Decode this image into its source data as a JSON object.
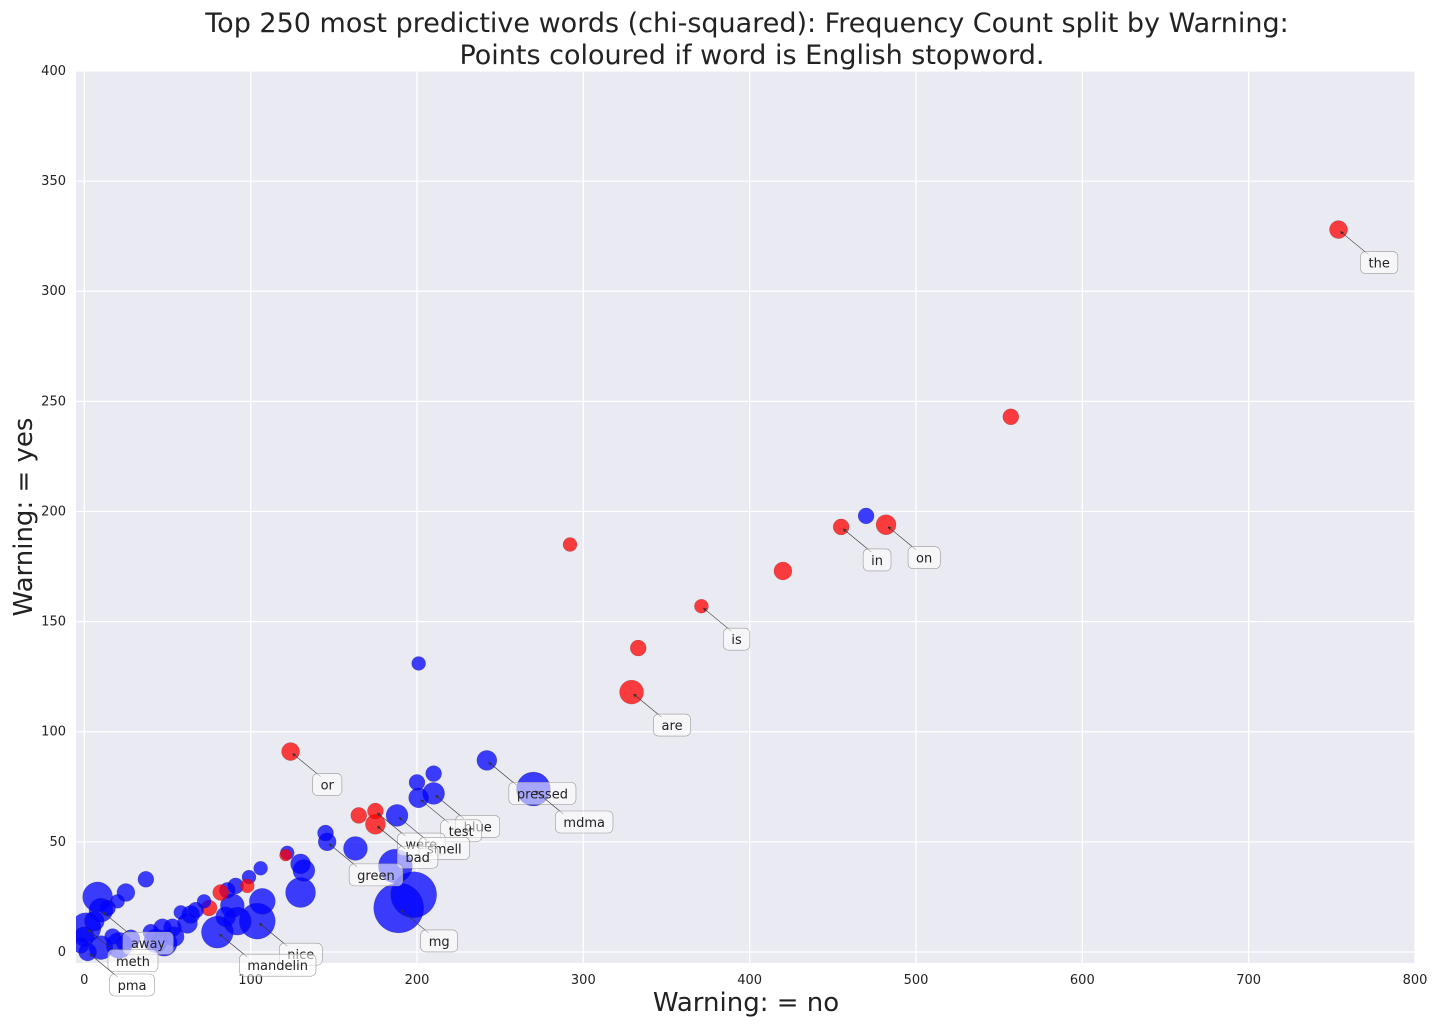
{
  "chart_data": {
    "type": "scatter",
    "title": "Top 250 most predictive words (chi-squared): Frequency Count split by Warning:",
    "subtitle": "Points coloured if word is English stopword.",
    "xlabel": "Warning: = no",
    "ylabel": "Warning: = yes",
    "xlim": [
      -5,
      800
    ],
    "ylim": [
      -5,
      400
    ],
    "xticks": [
      "0",
      "100",
      "200",
      "300",
      "400",
      "500",
      "600",
      "700",
      "800"
    ],
    "yticks": [
      "0",
      "50",
      "100",
      "150",
      "200",
      "250",
      "300",
      "350",
      "400"
    ],
    "grid": true,
    "colors": {
      "stopword": "#ff0000",
      "other": "#0000ff",
      "background": "#eaeaf2",
      "grid": "#ffffff"
    },
    "points": [
      {
        "x": 754,
        "y": 328,
        "size": 9,
        "stop": true
      },
      {
        "x": 557,
        "y": 243,
        "size": 8,
        "stop": true
      },
      {
        "x": 470,
        "y": 198,
        "size": 8,
        "stop": false
      },
      {
        "x": 455,
        "y": 193,
        "size": 8,
        "stop": true
      },
      {
        "x": 482,
        "y": 194,
        "size": 10,
        "stop": true
      },
      {
        "x": 292,
        "y": 185,
        "size": 7,
        "stop": true
      },
      {
        "x": 420,
        "y": 173,
        "size": 9,
        "stop": true
      },
      {
        "x": 371,
        "y": 157,
        "size": 7,
        "stop": true
      },
      {
        "x": 333,
        "y": 138,
        "size": 8,
        "stop": true
      },
      {
        "x": 201,
        "y": 131,
        "size": 7,
        "stop": false
      },
      {
        "x": 329,
        "y": 118,
        "size": 12,
        "stop": true
      },
      {
        "x": 124,
        "y": 91,
        "size": 9,
        "stop": true
      },
      {
        "x": 242,
        "y": 87,
        "size": 10,
        "stop": false
      },
      {
        "x": 270,
        "y": 74,
        "size": 17,
        "stop": false
      },
      {
        "x": 210,
        "y": 81,
        "size": 8,
        "stop": false
      },
      {
        "x": 200,
        "y": 77,
        "size": 8,
        "stop": false
      },
      {
        "x": 210,
        "y": 72,
        "size": 11,
        "stop": false
      },
      {
        "x": 201,
        "y": 70,
        "size": 10,
        "stop": false
      },
      {
        "x": 175,
        "y": 64,
        "size": 8,
        "stop": true
      },
      {
        "x": 165,
        "y": 62,
        "size": 8,
        "stop": true
      },
      {
        "x": 188,
        "y": 62,
        "size": 11,
        "stop": false
      },
      {
        "x": 175,
        "y": 58,
        "size": 10,
        "stop": true
      },
      {
        "x": 145,
        "y": 54,
        "size": 8,
        "stop": false
      },
      {
        "x": 146,
        "y": 50,
        "size": 9,
        "stop": false
      },
      {
        "x": 163,
        "y": 47,
        "size": 12,
        "stop": false
      },
      {
        "x": 122,
        "y": 45,
        "size": 7,
        "stop": false
      },
      {
        "x": 121,
        "y": 44,
        "size": 6,
        "stop": true
      },
      {
        "x": 130,
        "y": 40,
        "size": 10,
        "stop": false
      },
      {
        "x": 132,
        "y": 37,
        "size": 11,
        "stop": false
      },
      {
        "x": 187,
        "y": 39,
        "size": 17,
        "stop": false
      },
      {
        "x": 106,
        "y": 38,
        "size": 7,
        "stop": false
      },
      {
        "x": 99,
        "y": 34,
        "size": 7,
        "stop": false
      },
      {
        "x": 98,
        "y": 30,
        "size": 7,
        "stop": true
      },
      {
        "x": 91,
        "y": 30,
        "size": 8,
        "stop": false
      },
      {
        "x": 86,
        "y": 28,
        "size": 8,
        "stop": false
      },
      {
        "x": 130,
        "y": 27,
        "size": 15,
        "stop": false
      },
      {
        "x": 198,
        "y": 26,
        "size": 23,
        "stop": false
      },
      {
        "x": 37,
        "y": 33,
        "size": 8,
        "stop": false
      },
      {
        "x": 25,
        "y": 27,
        "size": 9,
        "stop": false
      },
      {
        "x": 8,
        "y": 25,
        "size": 15,
        "stop": false
      },
      {
        "x": 20,
        "y": 23,
        "size": 7,
        "stop": false
      },
      {
        "x": 72,
        "y": 23,
        "size": 7,
        "stop": false
      },
      {
        "x": 107,
        "y": 23,
        "size": 13,
        "stop": false
      },
      {
        "x": 82,
        "y": 27,
        "size": 8,
        "stop": true
      },
      {
        "x": 75,
        "y": 20,
        "size": 8,
        "stop": true
      },
      {
        "x": 89,
        "y": 21,
        "size": 12,
        "stop": false
      },
      {
        "x": 189,
        "y": 20,
        "size": 25,
        "stop": false
      },
      {
        "x": 14,
        "y": 20,
        "size": 8,
        "stop": false
      },
      {
        "x": 10,
        "y": 19,
        "size": 12,
        "stop": false
      },
      {
        "x": 67,
        "y": 19,
        "size": 8,
        "stop": false
      },
      {
        "x": 58,
        "y": 18,
        "size": 7,
        "stop": false
      },
      {
        "x": 64,
        "y": 17,
        "size": 9,
        "stop": false
      },
      {
        "x": 85,
        "y": 16,
        "size": 10,
        "stop": false
      },
      {
        "x": 104,
        "y": 14,
        "size": 18,
        "stop": false
      },
      {
        "x": 92,
        "y": 14,
        "size": 14,
        "stop": false
      },
      {
        "x": 6,
        "y": 14,
        "size": 10,
        "stop": false
      },
      {
        "x": 1,
        "y": 11,
        "size": 15,
        "stop": false
      },
      {
        "x": 47,
        "y": 11,
        "size": 9,
        "stop": false
      },
      {
        "x": 53,
        "y": 11,
        "size": 9,
        "stop": false
      },
      {
        "x": 62,
        "y": 13,
        "size": 10,
        "stop": false
      },
      {
        "x": 80,
        "y": 9,
        "size": 16,
        "stop": false
      },
      {
        "x": 40,
        "y": 9,
        "size": 8,
        "stop": false
      },
      {
        "x": 54,
        "y": 7,
        "size": 10,
        "stop": false
      },
      {
        "x": 43,
        "y": 5,
        "size": 12,
        "stop": false
      },
      {
        "x": 48,
        "y": 4,
        "size": 13,
        "stop": false
      },
      {
        "x": 17,
        "y": 7,
        "size": 8,
        "stop": false
      },
      {
        "x": 28,
        "y": 6,
        "size": 9,
        "stop": false
      },
      {
        "x": 24,
        "y": 4,
        "size": 8,
        "stop": false
      },
      {
        "x": 0,
        "y": 7,
        "size": 10,
        "stop": false
      },
      {
        "x": -2,
        "y": 3,
        "size": 8,
        "stop": false
      },
      {
        "x": 10,
        "y": 2,
        "size": 12,
        "stop": false
      },
      {
        "x": 21,
        "y": 3,
        "size": 13,
        "stop": false
      },
      {
        "x": 2,
        "y": 0,
        "size": 9,
        "stop": false
      }
    ],
    "annotations": [
      {
        "label": "the",
        "x": 754,
        "y": 328
      },
      {
        "label": "in",
        "x": 455,
        "y": 193
      },
      {
        "label": "on",
        "x": 482,
        "y": 194
      },
      {
        "label": "is",
        "x": 371,
        "y": 157
      },
      {
        "label": "are",
        "x": 329,
        "y": 118
      },
      {
        "label": "or",
        "x": 124,
        "y": 91
      },
      {
        "label": "pressed",
        "x": 242,
        "y": 87
      },
      {
        "label": "mdma",
        "x": 270,
        "y": 74
      },
      {
        "label": "blue",
        "x": 210,
        "y": 72
      },
      {
        "label": "test",
        "x": 201,
        "y": 70
      },
      {
        "label": "were",
        "x": 175,
        "y": 64
      },
      {
        "label": "smell",
        "x": 188,
        "y": 62
      },
      {
        "label": "bad",
        "x": 175,
        "y": 58
      },
      {
        "label": "green",
        "x": 146,
        "y": 50
      },
      {
        "label": "mg",
        "x": 189,
        "y": 20
      },
      {
        "label": "nice",
        "x": 104,
        "y": 14
      },
      {
        "label": "mandelin",
        "x": 80,
        "y": 9
      },
      {
        "label": "away",
        "x": 10,
        "y": 19
      },
      {
        "label": "meth",
        "x": 1,
        "y": 11
      },
      {
        "label": "pma",
        "x": 2,
        "y": 0
      }
    ]
  }
}
